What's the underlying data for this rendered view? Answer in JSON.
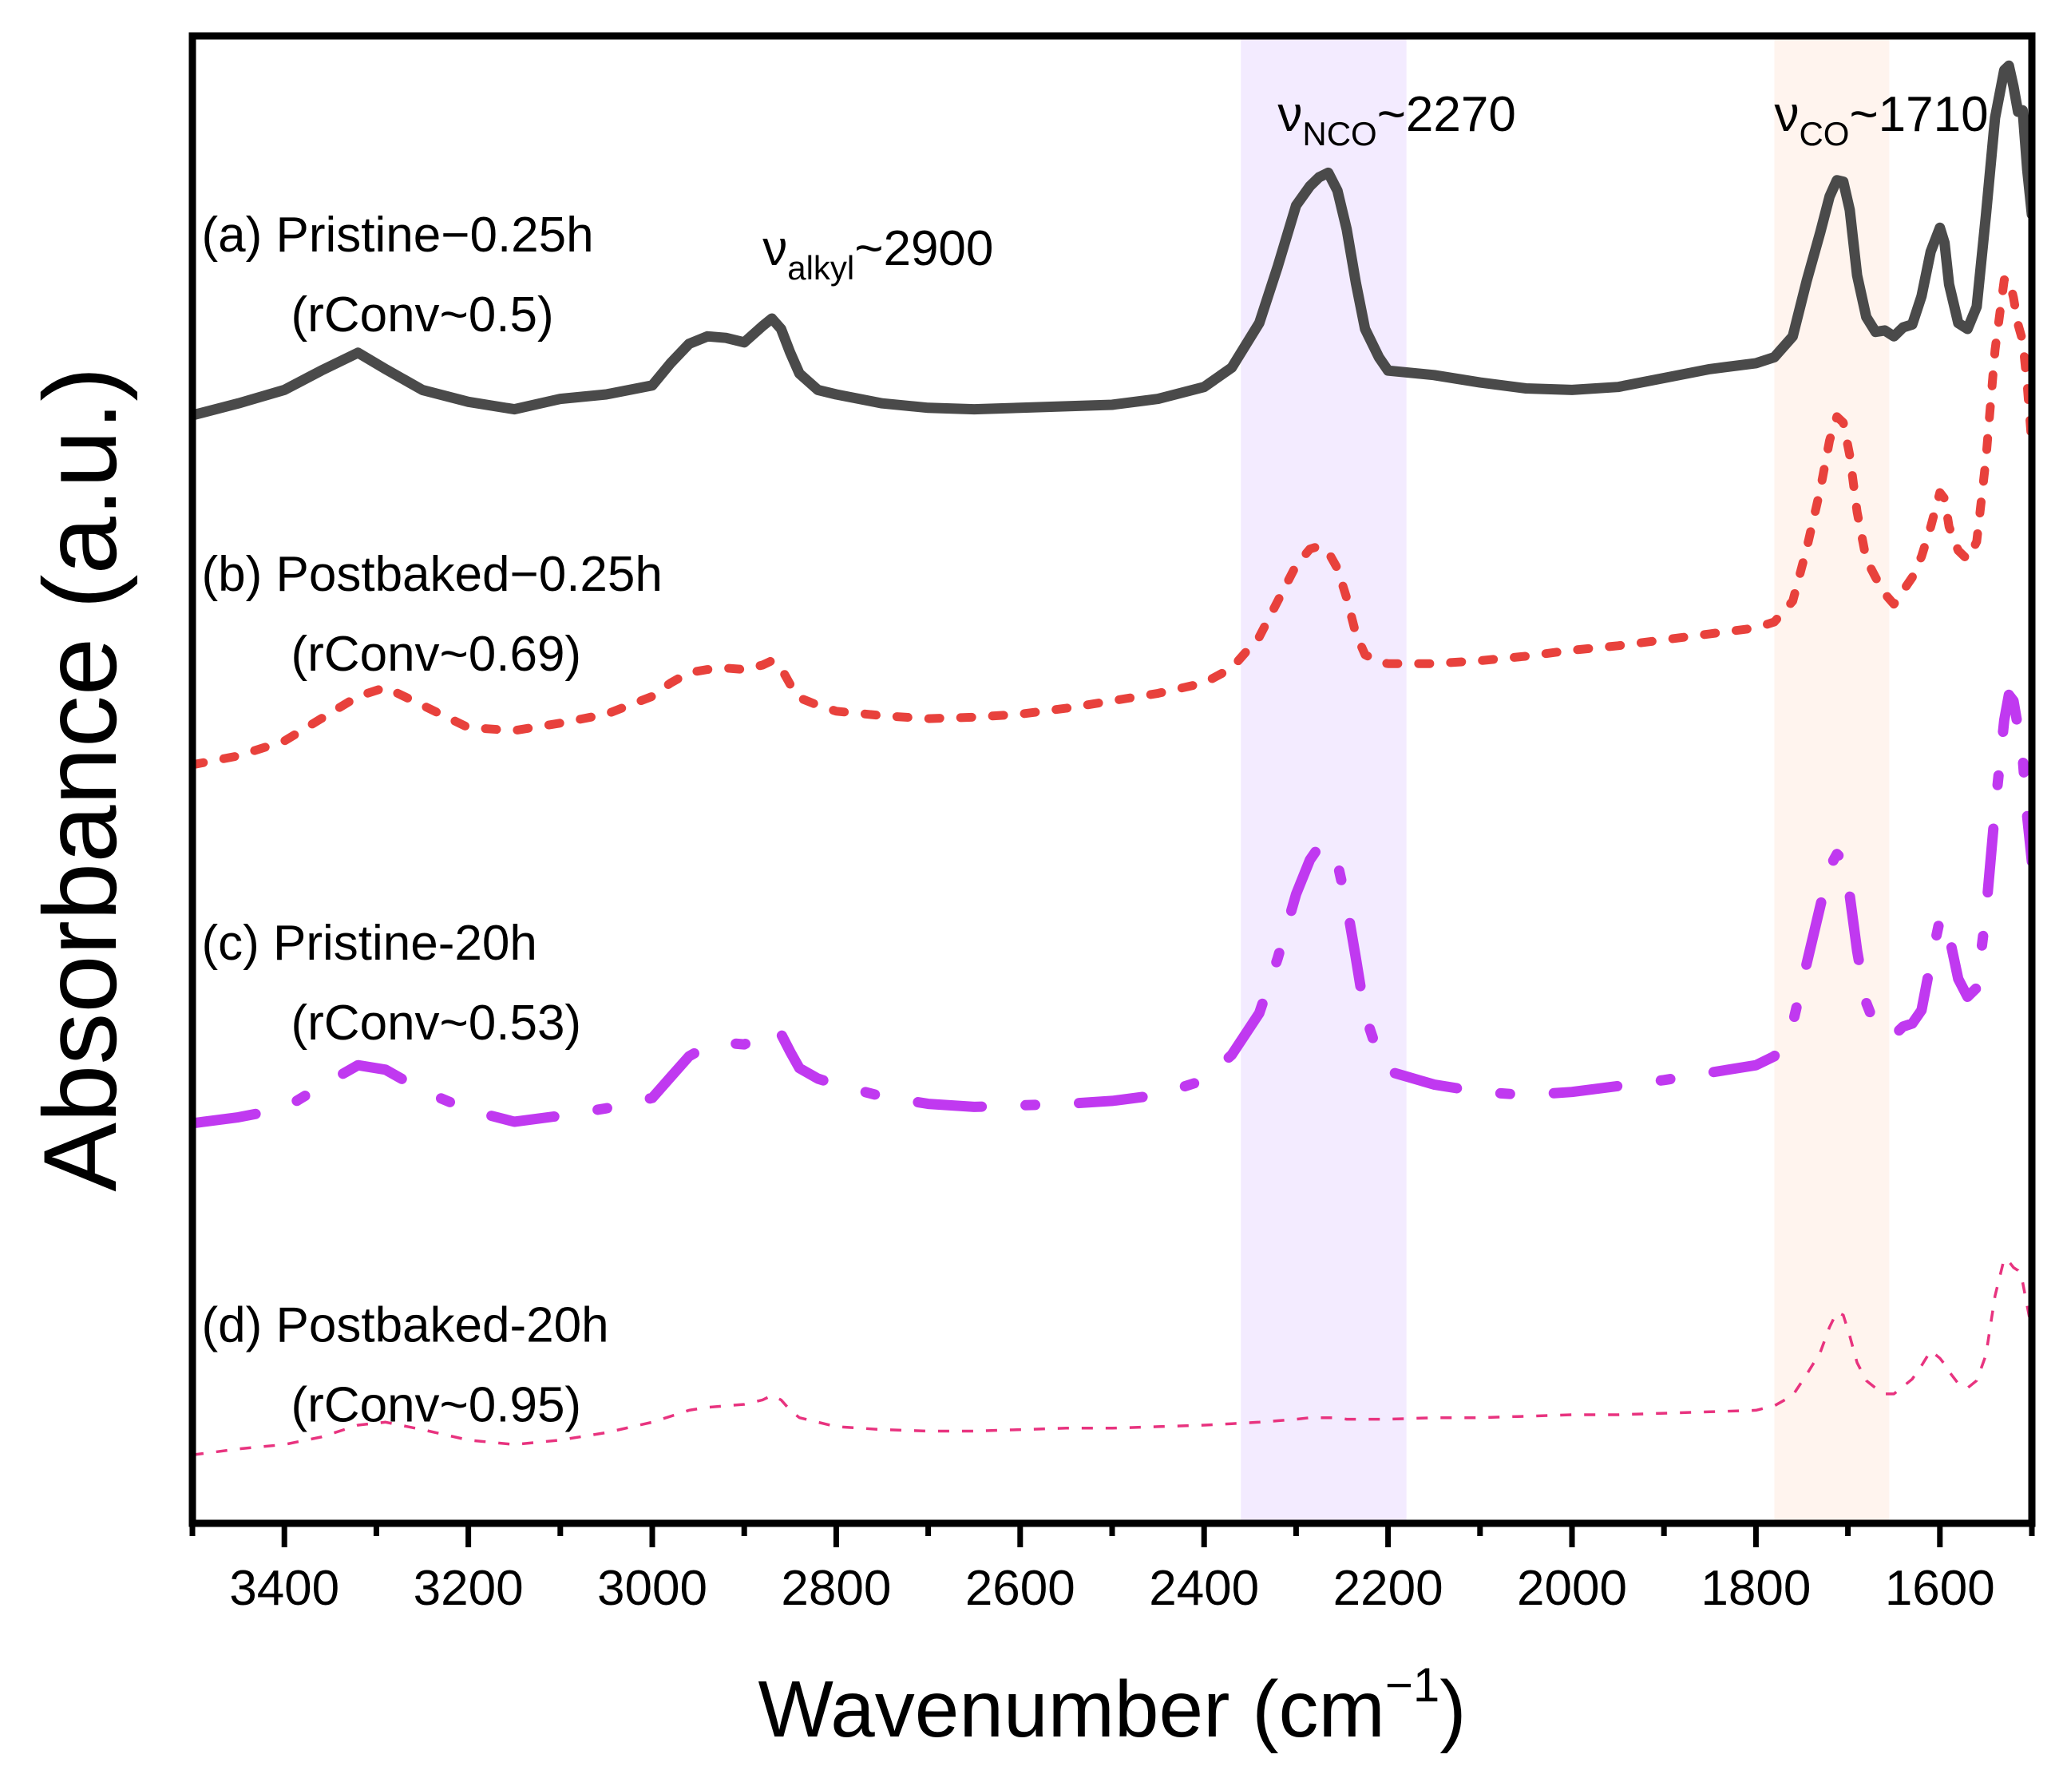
{
  "chart_data": {
    "type": "line",
    "title": "",
    "xlabel": "Wavenumber (cm",
    "xlabel_sup": "−1",
    "xlabel_close": ")",
    "ylabel": "Absorbance (a.u.)",
    "x_reversed": true,
    "xlim": [
      3500,
      1500
    ],
    "ylim": [
      0,
      100
    ],
    "y_ticks_shown": false,
    "x_ticks": [
      3400,
      3200,
      3000,
      2800,
      2600,
      2400,
      2200,
      2000,
      1800,
      1600
    ],
    "x_tick_labels": [
      "3400",
      "3200",
      "3000",
      "2800",
      "2600",
      "2400",
      "2200",
      "2000",
      "1800",
      "1600"
    ],
    "bands": [
      {
        "name": "NCO band",
        "from": 2360,
        "to": 2180,
        "color": "#f3ebff"
      },
      {
        "name": "CO band",
        "from": 1780,
        "to": 1655,
        "color": "#fff4ee"
      }
    ],
    "annotations": [
      {
        "nu": "ν",
        "sub": "alkyl",
        "text": "~2900",
        "x": 2880,
        "y": 84.6
      },
      {
        "nu": "ν",
        "sub": "NCO",
        "text": "~2270",
        "x": 2320,
        "y": 93.6
      },
      {
        "nu": "ν",
        "sub": "CO",
        "text": "~1710",
        "x": 1780,
        "y": 93.6
      }
    ],
    "series": [
      {
        "name": "(a) Pristine−0.25h",
        "sublabel": "(rConv~0.5)",
        "color": "#4a4a4a",
        "style": "solid",
        "label_x": 3490,
        "label_y": 85.5,
        "x": [
          3500,
          3450,
          3400,
          3360,
          3320,
          3290,
          3250,
          3200,
          3150,
          3100,
          3050,
          3000,
          2980,
          2960,
          2940,
          2920,
          2900,
          2880,
          2870,
          2860,
          2850,
          2840,
          2820,
          2800,
          2750,
          2700,
          2650,
          2600,
          2550,
          2500,
          2450,
          2400,
          2370,
          2340,
          2320,
          2300,
          2285,
          2275,
          2265,
          2255,
          2245,
          2235,
          2225,
          2210,
          2200,
          2150,
          2100,
          2050,
          2000,
          1950,
          1900,
          1850,
          1800,
          1780,
          1760,
          1745,
          1730,
          1720,
          1712,
          1705,
          1698,
          1690,
          1680,
          1670,
          1660,
          1650,
          1640,
          1630,
          1620,
          1610,
          1600,
          1595,
          1590,
          1580,
          1570,
          1560,
          1550,
          1540,
          1530,
          1525,
          1520,
          1515,
          1510,
          1505,
          1500
        ],
        "y": [
          74.5,
          75.3,
          76.2,
          77.5,
          78.7,
          77.6,
          76.2,
          75.4,
          74.9,
          75.6,
          75.9,
          76.5,
          78.0,
          79.3,
          79.8,
          79.7,
          79.4,
          80.5,
          81.0,
          80.3,
          78.7,
          77.3,
          76.2,
          75.9,
          75.3,
          75.0,
          74.9,
          75.0,
          75.1,
          75.2,
          75.6,
          76.4,
          77.7,
          80.7,
          84.5,
          88.6,
          89.9,
          90.5,
          90.8,
          89.6,
          87.0,
          83.4,
          80.3,
          78.4,
          77.5,
          77.2,
          76.7,
          76.3,
          76.2,
          76.4,
          77.0,
          77.6,
          78.0,
          78.4,
          79.8,
          83.5,
          86.8,
          89.2,
          90.3,
          90.2,
          88.3,
          83.9,
          81.1,
          80.1,
          80.2,
          79.8,
          80.4,
          80.6,
          82.5,
          85.5,
          87.1,
          86.1,
          83.3,
          80.7,
          80.3,
          81.8,
          87.9,
          94.5,
          97.7,
          98.0,
          96.6,
          94.9,
          95.0,
          91.0,
          88.0
        ]
      },
      {
        "name": "(b) Postbaked−0.25h",
        "sublabel": "(rConv~0.69)",
        "color": "#e8413c",
        "style": "dotted",
        "label_x": 3490,
        "label_y": 62.7,
        "x": [
          3500,
          3450,
          3400,
          3360,
          3320,
          3290,
          3250,
          3200,
          3150,
          3100,
          3050,
          3000,
          2980,
          2960,
          2940,
          2920,
          2900,
          2880,
          2870,
          2860,
          2850,
          2840,
          2820,
          2800,
          2750,
          2700,
          2650,
          2600,
          2550,
          2500,
          2450,
          2400,
          2370,
          2340,
          2320,
          2300,
          2285,
          2275,
          2265,
          2255,
          2245,
          2235,
          2225,
          2210,
          2200,
          2150,
          2100,
          2050,
          2000,
          1950,
          1900,
          1850,
          1800,
          1780,
          1760,
          1745,
          1730,
          1720,
          1712,
          1705,
          1698,
          1690,
          1680,
          1670,
          1660,
          1650,
          1640,
          1630,
          1620,
          1610,
          1600,
          1595,
          1590,
          1580,
          1570,
          1560,
          1550,
          1540,
          1530,
          1525,
          1520,
          1515,
          1510,
          1505,
          1500
        ],
        "y": [
          51.0,
          51.6,
          52.6,
          54.1,
          55.6,
          56.2,
          55.0,
          53.5,
          53.3,
          53.8,
          54.4,
          55.6,
          56.5,
          57.2,
          57.4,
          57.5,
          57.4,
          57.7,
          58.0,
          57.5,
          56.4,
          55.5,
          55.0,
          54.6,
          54.3,
          54.1,
          54.2,
          54.4,
          54.8,
          55.3,
          55.8,
          56.5,
          57.5,
          59.6,
          62.0,
          64.4,
          65.5,
          65.7,
          65.3,
          64.2,
          62.2,
          59.8,
          58.4,
          57.9,
          57.8,
          57.8,
          58.0,
          58.3,
          58.7,
          59.0,
          59.4,
          59.8,
          60.2,
          60.6,
          62.0,
          65.5,
          69.5,
          72.8,
          74.4,
          74.0,
          71.8,
          68.0,
          64.8,
          63.6,
          62.5,
          61.8,
          62.7,
          63.6,
          65.0,
          67.0,
          69.3,
          68.9,
          67.0,
          65.4,
          64.8,
          66.0,
          71.5,
          78.9,
          83.6,
          83.7,
          82.4,
          80.6,
          79.5,
          76.5,
          72.5
        ]
      },
      {
        "name": "(c) Pristine-20h",
        "sublabel": "(rConv~0.53)",
        "color": "#c039f0",
        "style": "dashdot",
        "label_x": 3490,
        "label_y": 37.9,
        "x": [
          3500,
          3450,
          3400,
          3360,
          3320,
          3290,
          3250,
          3200,
          3150,
          3100,
          3050,
          3000,
          2980,
          2960,
          2940,
          2920,
          2900,
          2880,
          2870,
          2860,
          2850,
          2840,
          2820,
          2800,
          2750,
          2700,
          2650,
          2600,
          2550,
          2500,
          2450,
          2400,
          2370,
          2340,
          2320,
          2300,
          2285,
          2275,
          2265,
          2255,
          2245,
          2235,
          2225,
          2210,
          2200,
          2150,
          2100,
          2050,
          2000,
          1950,
          1900,
          1850,
          1800,
          1780,
          1760,
          1745,
          1730,
          1720,
          1712,
          1705,
          1698,
          1690,
          1680,
          1670,
          1660,
          1650,
          1640,
          1630,
          1620,
          1610,
          1600,
          1595,
          1590,
          1580,
          1570,
          1560,
          1550,
          1540,
          1530,
          1525,
          1520,
          1515,
          1510,
          1505,
          1500
        ],
        "y": [
          26.9,
          27.3,
          27.9,
          29.4,
          30.8,
          30.5,
          29.1,
          27.8,
          27.0,
          27.4,
          27.9,
          28.6,
          30.0,
          31.4,
          32.1,
          32.3,
          32.2,
          32.8,
          33.3,
          32.9,
          31.7,
          30.6,
          29.9,
          29.5,
          28.7,
          28.2,
          28.0,
          28.1,
          28.2,
          28.4,
          28.8,
          29.8,
          31.5,
          34.3,
          38.0,
          42.3,
          44.6,
          45.5,
          45.6,
          44.4,
          41.6,
          38.0,
          34.2,
          31.4,
          30.4,
          29.5,
          29.0,
          28.8,
          29.0,
          29.4,
          29.8,
          30.3,
          30.8,
          31.4,
          33.6,
          37.6,
          41.5,
          44.1,
          45.0,
          44.6,
          42.2,
          38.5,
          35.0,
          33.4,
          32.9,
          32.8,
          33.4,
          33.6,
          34.5,
          37.7,
          40.6,
          40.8,
          39.5,
          36.6,
          35.4,
          36.0,
          41.0,
          48.0,
          54.0,
          55.7,
          55.3,
          53.5,
          51.5,
          47.5,
          44.5
        ]
      },
      {
        "name": "(d) Postbaked-20h",
        "sublabel": "(rConv~0.95)",
        "color": "#e8337f",
        "style": "fine",
        "label_x": 3490,
        "label_y": 12.2,
        "x": [
          3500,
          3450,
          3400,
          3360,
          3320,
          3290,
          3250,
          3200,
          3150,
          3100,
          3050,
          3000,
          2980,
          2960,
          2940,
          2920,
          2900,
          2880,
          2870,
          2860,
          2850,
          2840,
          2820,
          2800,
          2750,
          2700,
          2650,
          2600,
          2550,
          2500,
          2450,
          2400,
          2370,
          2340,
          2320,
          2300,
          2285,
          2275,
          2265,
          2255,
          2245,
          2235,
          2225,
          2210,
          2200,
          2150,
          2100,
          2050,
          2000,
          1950,
          1900,
          1850,
          1800,
          1780,
          1760,
          1745,
          1730,
          1720,
          1712,
          1705,
          1698,
          1690,
          1680,
          1670,
          1660,
          1650,
          1640,
          1630,
          1620,
          1610,
          1600,
          1595,
          1590,
          1580,
          1570,
          1560,
          1550,
          1540,
          1530,
          1525,
          1520,
          1515,
          1510,
          1505,
          1500
        ],
        "y": [
          4.6,
          5.0,
          5.3,
          5.8,
          6.6,
          6.8,
          6.3,
          5.6,
          5.3,
          5.6,
          6.1,
          6.8,
          7.2,
          7.6,
          7.8,
          7.9,
          8.0,
          8.3,
          8.6,
          8.3,
          7.6,
          7.1,
          6.8,
          6.5,
          6.3,
          6.2,
          6.2,
          6.3,
          6.4,
          6.4,
          6.5,
          6.6,
          6.7,
          6.8,
          6.9,
          7.0,
          7.1,
          7.1,
          7.1,
          7.1,
          7.0,
          7.0,
          7.0,
          7.0,
          7.0,
          7.1,
          7.1,
          7.2,
          7.3,
          7.3,
          7.4,
          7.5,
          7.6,
          7.9,
          8.6,
          10.0,
          11.5,
          13.2,
          14.2,
          14.0,
          12.6,
          10.8,
          9.6,
          9.1,
          8.7,
          8.7,
          9.2,
          9.7,
          10.6,
          11.6,
          11.1,
          10.7,
          10.2,
          9.4,
          9.1,
          9.6,
          11.3,
          15.3,
          17.8,
          17.6,
          17.2,
          17.0,
          16.2,
          14.6,
          13.0
        ]
      }
    ]
  }
}
